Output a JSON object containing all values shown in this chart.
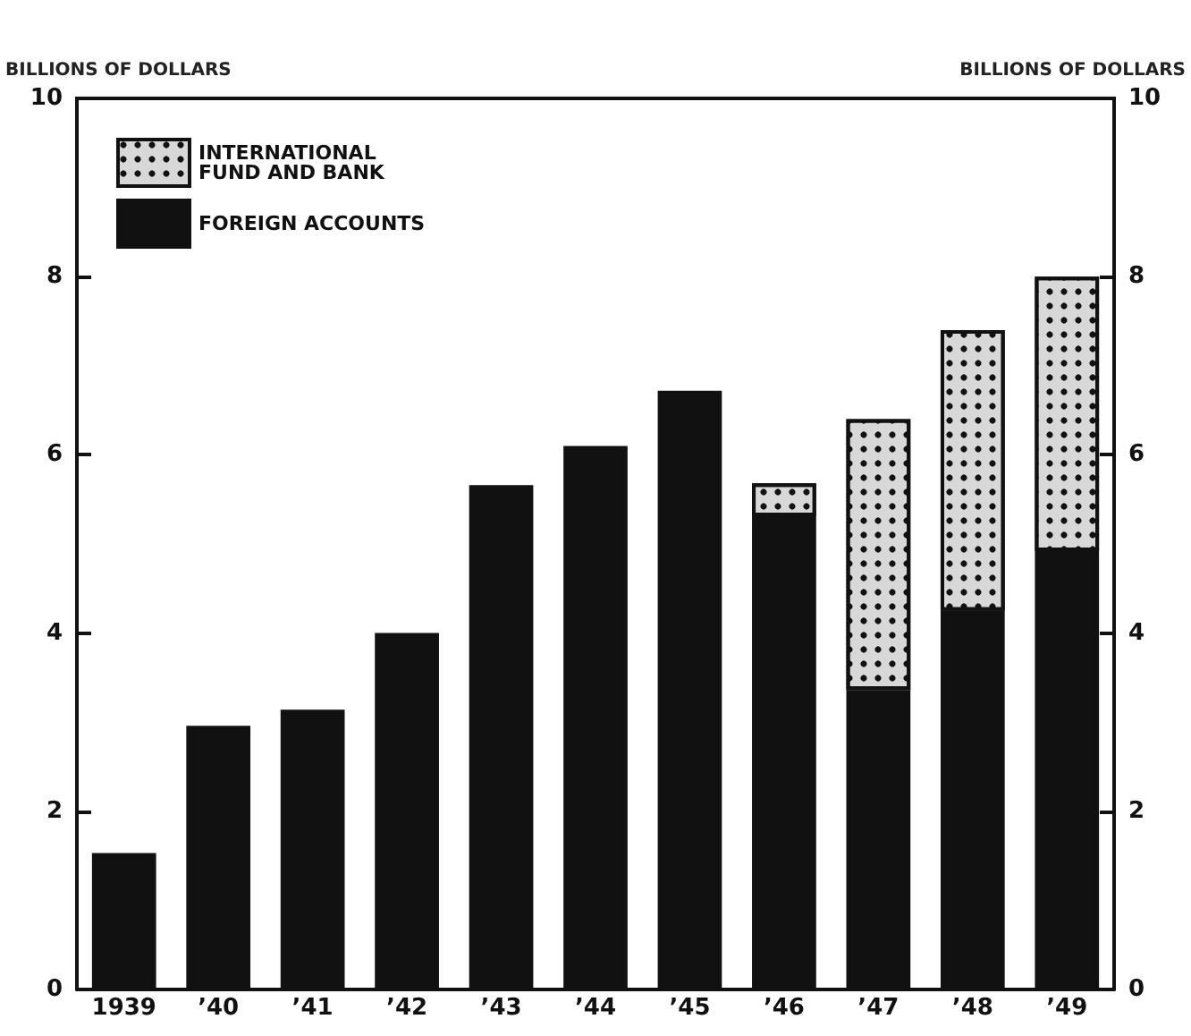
{
  "chart_data": {
    "type": "bar",
    "stacked": true,
    "ylabel": "BILLIONS OF DOLLARS",
    "y2label": "BILLIONS OF DOLLARS",
    "categories": [
      "1939",
      "’40",
      "’41",
      "’42",
      "’43",
      "’44",
      "’45",
      "’46",
      "’47",
      "’48",
      "’49"
    ],
    "series": [
      {
        "name": "FOREIGN ACCOUNTS",
        "color": "#111111",
        "values": [
          1.53,
          2.96,
          3.14,
          4.0,
          5.66,
          6.1,
          6.72,
          5.31,
          3.36,
          4.25,
          4.92
        ]
      },
      {
        "name": "INTERNATIONAL FUND AND BANK",
        "color": "#d8d8d8",
        "values": [
          null,
          null,
          null,
          null,
          null,
          null,
          null,
          0.37,
          3.04,
          3.15,
          3.08
        ]
      }
    ],
    "ylim": [
      0,
      10
    ],
    "yticks": [
      0,
      2,
      4,
      6,
      8,
      10
    ],
    "y2lim": [
      0,
      10
    ],
    "y2ticks": [
      0,
      2,
      4,
      6,
      8,
      10
    ],
    "grid": false,
    "legend": "top left"
  }
}
